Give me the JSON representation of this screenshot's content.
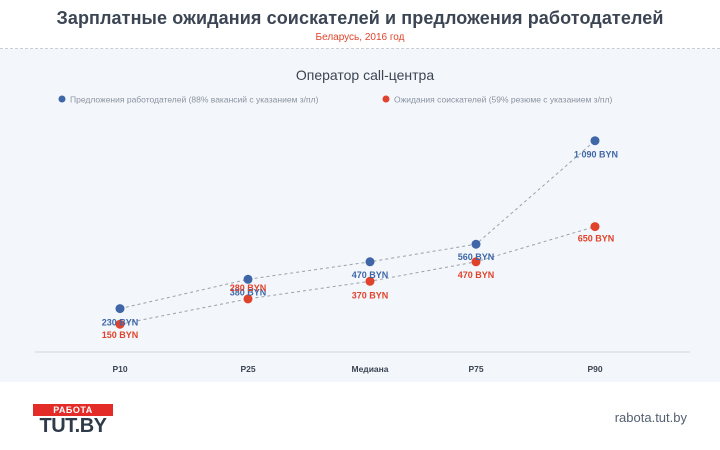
{
  "header": {
    "title": "Зарплатные ожидания соискателей и предложения  работодателей",
    "subtitle": "Беларусь, 2016 год"
  },
  "colors": {
    "series_blue": "#3f67a8",
    "series_red": "#e0432c",
    "text_dark": "#3c4553",
    "panel_bg": "#f3f6fa"
  },
  "chart_data": {
    "type": "line",
    "title": "Оператор call-центра",
    "categories": [
      "P10",
      "P25",
      "Медиана",
      "P75",
      "P90"
    ],
    "ylim": [
      100,
      1150
    ],
    "legend_position": "top-left",
    "grid": false,
    "series": [
      {
        "name": "Предложения работодателей (88% вакансий с указанием з/пл)",
        "color": "#3f67a8",
        "values": [
          230,
          380,
          470,
          560,
          1090
        ],
        "labels": [
          "230 BYN",
          "380 BYN",
          "470 BYN",
          "560 BYN",
          "1 090 BYN"
        ]
      },
      {
        "name": "Ожидания соискателей (59% резюме с указанием з/пл)",
        "color": "#e0432c",
        "values": [
          150,
          280,
          370,
          470,
          650
        ],
        "labels": [
          "150 BYN",
          "280 BYN",
          "370 BYN",
          "470 BYN",
          "650 BYN"
        ]
      }
    ]
  },
  "footer": {
    "logo_top": "РАБОТА",
    "logo_bottom": "TUT.BY",
    "site": "rabota.tut.by"
  }
}
